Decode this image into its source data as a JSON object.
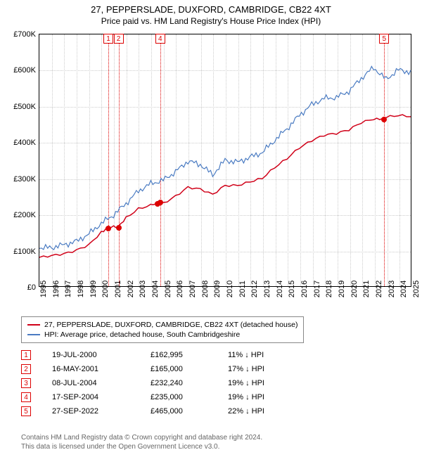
{
  "title": "27, PEPPERSLADE, DUXFORD, CAMBRIDGE, CB22 4XT",
  "subtitle": "Price paid vs. HM Land Registry's House Price Index (HPI)",
  "chart": {
    "type": "line",
    "ylim": [
      0,
      700000
    ],
    "ytick_step": 100000,
    "ylabels": [
      "£0",
      "£100K",
      "£200K",
      "£300K",
      "£400K",
      "£500K",
      "£600K",
      "£700K"
    ],
    "xmin": 1995,
    "xmax": 2025,
    "xstep": 1,
    "background_color": "#ffffff",
    "grid_color": "#cccccc",
    "series": [
      {
        "name": "property",
        "color": "#d00018",
        "width": 1.5,
        "label": "27, PEPPERSLADE, DUXFORD, CAMBRIDGE, CB22 4XT (detached house)",
        "points": [
          [
            1995,
            80000
          ],
          [
            1996,
            85000
          ],
          [
            1997,
            90000
          ],
          [
            1998,
            100000
          ],
          [
            1999,
            115000
          ],
          [
            2000,
            150000
          ],
          [
            2000.55,
            162995
          ],
          [
            2001,
            165000
          ],
          [
            2001.37,
            165000
          ],
          [
            2002,
            190000
          ],
          [
            2003,
            215000
          ],
          [
            2004,
            225000
          ],
          [
            2004.52,
            232240
          ],
          [
            2004.72,
            235000
          ],
          [
            2005,
            230000
          ],
          [
            2006,
            250000
          ],
          [
            2007,
            275000
          ],
          [
            2008,
            270000
          ],
          [
            2009,
            255000
          ],
          [
            2010,
            280000
          ],
          [
            2011,
            280000
          ],
          [
            2012,
            290000
          ],
          [
            2013,
            300000
          ],
          [
            2014,
            330000
          ],
          [
            2015,
            355000
          ],
          [
            2016,
            385000
          ],
          [
            2017,
            405000
          ],
          [
            2018,
            420000
          ],
          [
            2019,
            425000
          ],
          [
            2020,
            435000
          ],
          [
            2021,
            455000
          ],
          [
            2022,
            465000
          ],
          [
            2022.75,
            465000
          ],
          [
            2023,
            470000
          ],
          [
            2024,
            475000
          ],
          [
            2025,
            472000
          ]
        ]
      },
      {
        "name": "hpi",
        "color": "#4a7bc2",
        "width": 1.2,
        "label": "HPI: Average price, detached house, South Cambridgeshire",
        "points": [
          [
            1995,
            105000
          ],
          [
            1996,
            108000
          ],
          [
            1997,
            115000
          ],
          [
            1998,
            125000
          ],
          [
            1999,
            145000
          ],
          [
            2000,
            175000
          ],
          [
            2001,
            198000
          ],
          [
            2002,
            230000
          ],
          [
            2003,
            265000
          ],
          [
            2004,
            285000
          ],
          [
            2005,
            295000
          ],
          [
            2006,
            318000
          ],
          [
            2007,
            348000
          ],
          [
            2008,
            338000
          ],
          [
            2009,
            310000
          ],
          [
            2010,
            350000
          ],
          [
            2011,
            345000
          ],
          [
            2012,
            358000
          ],
          [
            2013,
            372000
          ],
          [
            2014,
            405000
          ],
          [
            2015,
            438000
          ],
          [
            2016,
            475000
          ],
          [
            2017,
            505000
          ],
          [
            2018,
            522000
          ],
          [
            2019,
            525000
          ],
          [
            2020,
            542000
          ],
          [
            2021,
            578000
          ],
          [
            2022,
            608000
          ],
          [
            2023,
            575000
          ],
          [
            2024,
            602000
          ],
          [
            2025,
            595000
          ]
        ]
      }
    ],
    "markers": [
      {
        "n": "1",
        "year": 2000.55,
        "price": 162995
      },
      {
        "n": "2",
        "year": 2001.37,
        "price": 165000
      },
      {
        "n": "3",
        "year": 2004.52,
        "price": 232240
      },
      {
        "n": "4",
        "year": 2004.72,
        "price": 235000
      },
      {
        "n": "5",
        "year": 2022.75,
        "price": 465000
      }
    ],
    "marker_boxes": [
      {
        "n": "1",
        "year": 2000.55
      },
      {
        "n": "2",
        "year": 2001.37
      },
      {
        "n": "4",
        "year": 2004.72
      },
      {
        "n": "5",
        "year": 2022.75
      }
    ]
  },
  "sales": [
    {
      "n": "1",
      "date": "19-JUL-2000",
      "price": "£162,995",
      "diff": "11% ↓ HPI"
    },
    {
      "n": "2",
      "date": "16-MAY-2001",
      "price": "£165,000",
      "diff": "17% ↓ HPI"
    },
    {
      "n": "3",
      "date": "08-JUL-2004",
      "price": "£232,240",
      "diff": "19% ↓ HPI"
    },
    {
      "n": "4",
      "date": "17-SEP-2004",
      "price": "£235,000",
      "diff": "19% ↓ HPI"
    },
    {
      "n": "5",
      "date": "27-SEP-2022",
      "price": "£465,000",
      "diff": "22% ↓ HPI"
    }
  ],
  "footer1": "Contains HM Land Registry data © Crown copyright and database right 2024.",
  "footer2": "This data is licensed under the Open Government Licence v3.0."
}
